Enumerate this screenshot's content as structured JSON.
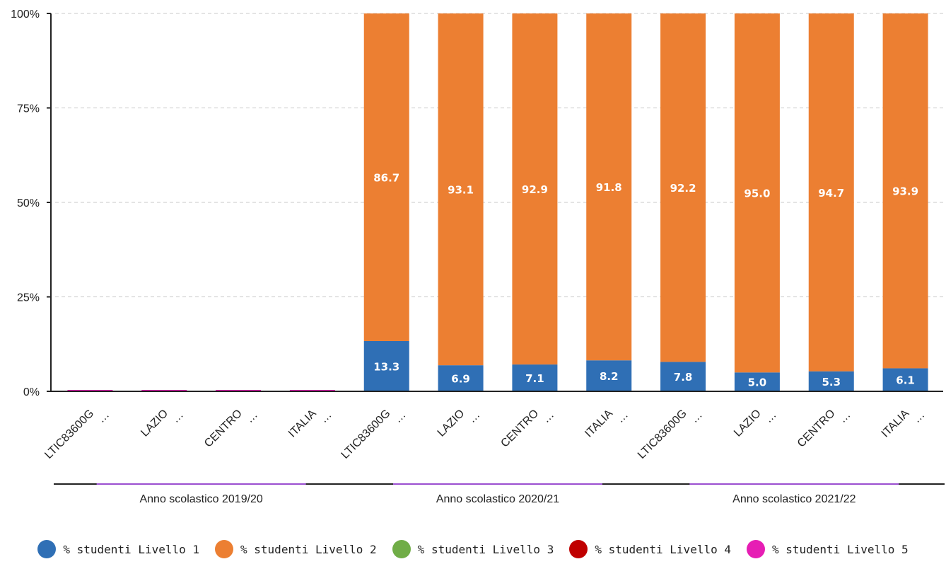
{
  "chart_data": {
    "type": "bar",
    "stacked": true,
    "categories": [
      "LTIC83600G\n…",
      "LAZIO\n…",
      "CENTRO\n…",
      "ITALIA\n…",
      "LTIC83600G\n…",
      "LAZIO\n…",
      "CENTRO\n…",
      "ITALIA\n…",
      "LTIC83600G\n…",
      "LAZIO\n…",
      "CENTRO\n…",
      "ITALIA\n…"
    ],
    "groups": [
      {
        "label": "Anno scolastico 2019/20"
      },
      {
        "label": "Anno scolastico 2020/21"
      },
      {
        "label": "Anno scolastico 2021/22"
      }
    ],
    "series": [
      {
        "name": "% studenti Livello 1",
        "color": "#2f6fb5",
        "values": [
          0,
          0,
          0,
          0,
          13.3,
          6.9,
          7.1,
          8.2,
          7.8,
          5.0,
          5.3,
          6.1
        ]
      },
      {
        "name": "% studenti Livello 2",
        "color": "#ec7f32",
        "values": [
          0,
          0,
          0,
          0,
          86.7,
          93.1,
          92.9,
          91.8,
          92.2,
          95.0,
          94.7,
          93.9
        ]
      },
      {
        "name": "% studenti Livello 3",
        "color": "#70ad47",
        "values": [
          0,
          0,
          0,
          0,
          0,
          0,
          0,
          0,
          0,
          0,
          0,
          0
        ]
      },
      {
        "name": "% studenti Livello 4",
        "color": "#c00000",
        "values": [
          0,
          0,
          0,
          0,
          0,
          0,
          0,
          0,
          0,
          0,
          0,
          0
        ]
      },
      {
        "name": "% studenti Livello 5",
        "color": "#e61eb4",
        "values": [
          0,
          0,
          0,
          0,
          0,
          0,
          0,
          0,
          0,
          0,
          0,
          0
        ]
      }
    ],
    "yticks": [
      "0%",
      "25%",
      "50%",
      "75%",
      "100%"
    ],
    "ylim": [
      0,
      100
    ],
    "grid": true,
    "legend_position": "bottom"
  }
}
